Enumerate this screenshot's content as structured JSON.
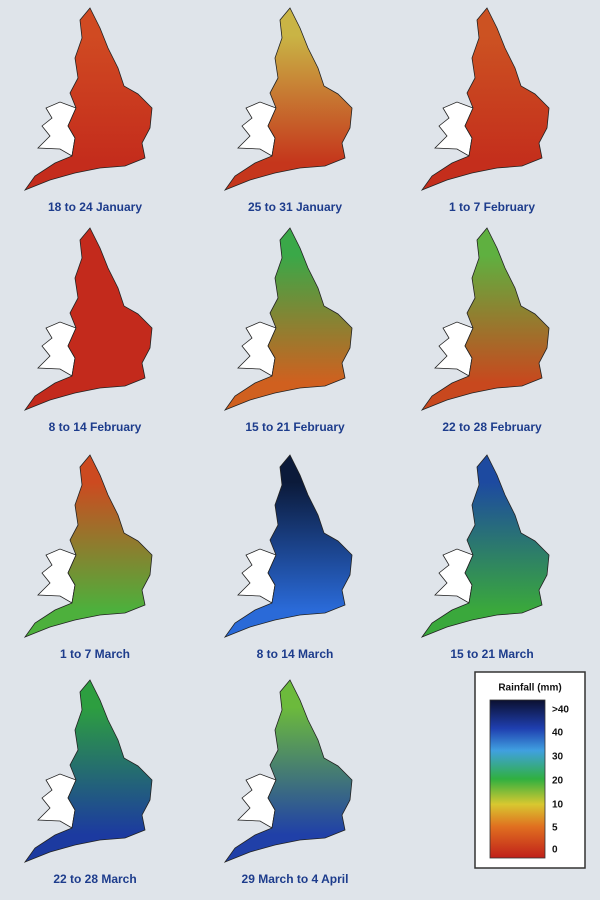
{
  "panels": [
    {
      "label": "18 to 24 January",
      "colors": [
        "#d04a22",
        "#c42c1c"
      ]
    },
    {
      "label": "25 to 31 January",
      "colors": [
        "#c9b445",
        "#c5361c"
      ]
    },
    {
      "label": "1 to 7 February",
      "colors": [
        "#cc5222",
        "#c42e1c"
      ]
    },
    {
      "label": "8 to 14 February",
      "colors": [
        "#c32a1c",
        "#c32a1c"
      ]
    },
    {
      "label": "15 to 21 February",
      "colors": [
        "#3aa848",
        "#d0601f"
      ]
    },
    {
      "label": "22 to 28 February",
      "colors": [
        "#5fb040",
        "#c8481e"
      ]
    },
    {
      "label": "1 to 7 March",
      "colors": [
        "#cc4a20",
        "#4db03c"
      ]
    },
    {
      "label": "8 to 14 March",
      "colors": [
        "#0b1a3a",
        "#2a6ad8"
      ]
    },
    {
      "label": "15 to 21 March",
      "colors": [
        "#1d4aa0",
        "#3aa83c"
      ]
    },
    {
      "label": "22 to 28 March",
      "colors": [
        "#2d9e40",
        "#1c3aa0"
      ]
    },
    {
      "label": "29 March to 4 April",
      "colors": [
        "#6cba3c",
        "#2040a8"
      ]
    }
  ],
  "legend": {
    "title": "Rainfall (mm)",
    "labels": [
      ">40",
      "40",
      "30",
      "20",
      "10",
      "5",
      "0"
    ]
  }
}
